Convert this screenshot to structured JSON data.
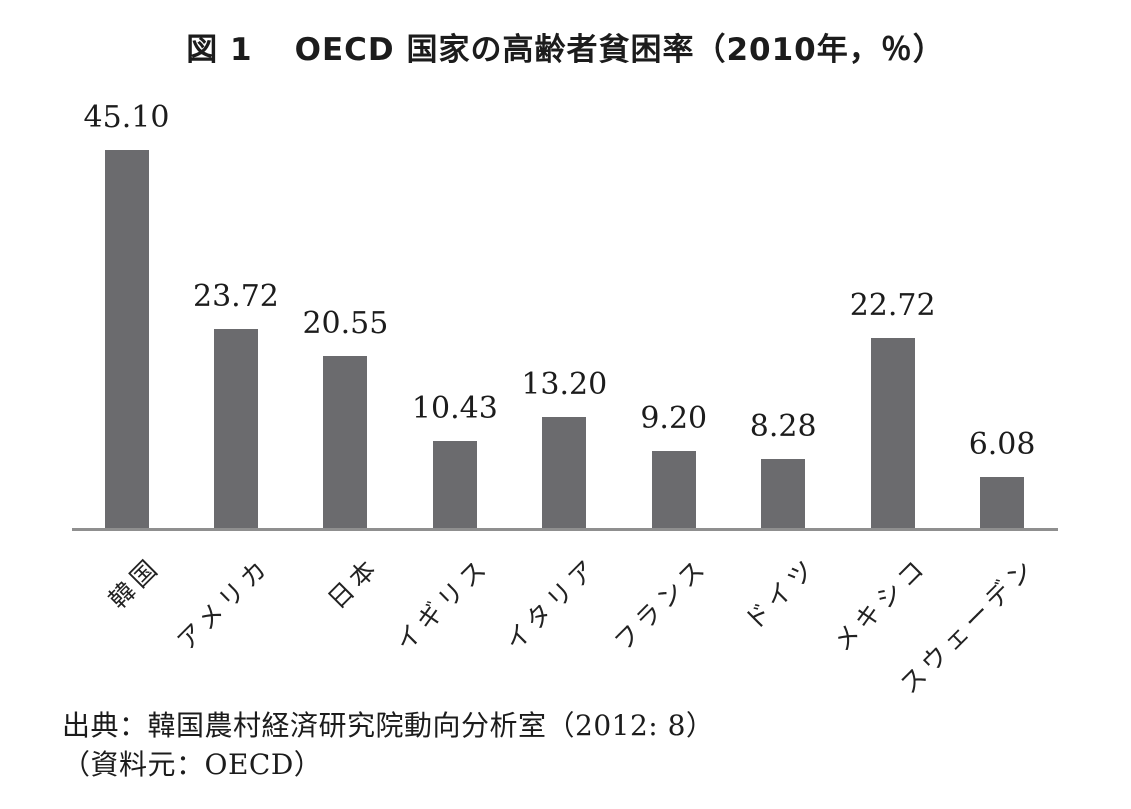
{
  "figure": {
    "title_prefix": "図 1",
    "title_main": "OECD 国家の高齢者貧困率（2010年，％）",
    "source_line1": "出典：韓国農村経済研究院動向分析室（2012: 8）",
    "source_line2": "（資料元：OECD）"
  },
  "colors": {
    "bar": "#6b6b6e",
    "axis": "#8f8f8f",
    "text": "#1c1c1c",
    "background": "#ffffff"
  },
  "chart_data": {
    "type": "bar",
    "title": "図1 OECD 国家の高齢者貧困率（2010年，％）",
    "categories": [
      "韓国",
      "アメリカ",
      "日本",
      "イギリス",
      "イタリア",
      "フランス",
      "ドイツ",
      "メキシコ",
      "スウェーデン"
    ],
    "values": [
      45.1,
      23.72,
      20.55,
      10.43,
      13.2,
      9.2,
      8.28,
      22.72,
      6.08
    ],
    "value_labels": [
      "45.10",
      "23.72",
      "20.55",
      "10.43",
      "13.20",
      "9.20",
      "8.28",
      "22.72",
      "6.08"
    ],
    "xlabel": "",
    "ylabel": "",
    "ylim": [
      0,
      48
    ],
    "grid": false,
    "legend": false,
    "bar_color": "#6b6b6e",
    "x_tick_rotation_deg": 45,
    "source": "出典：韓国農村経済研究院動向分析室（2012: 8）（資料元：OECD）"
  }
}
